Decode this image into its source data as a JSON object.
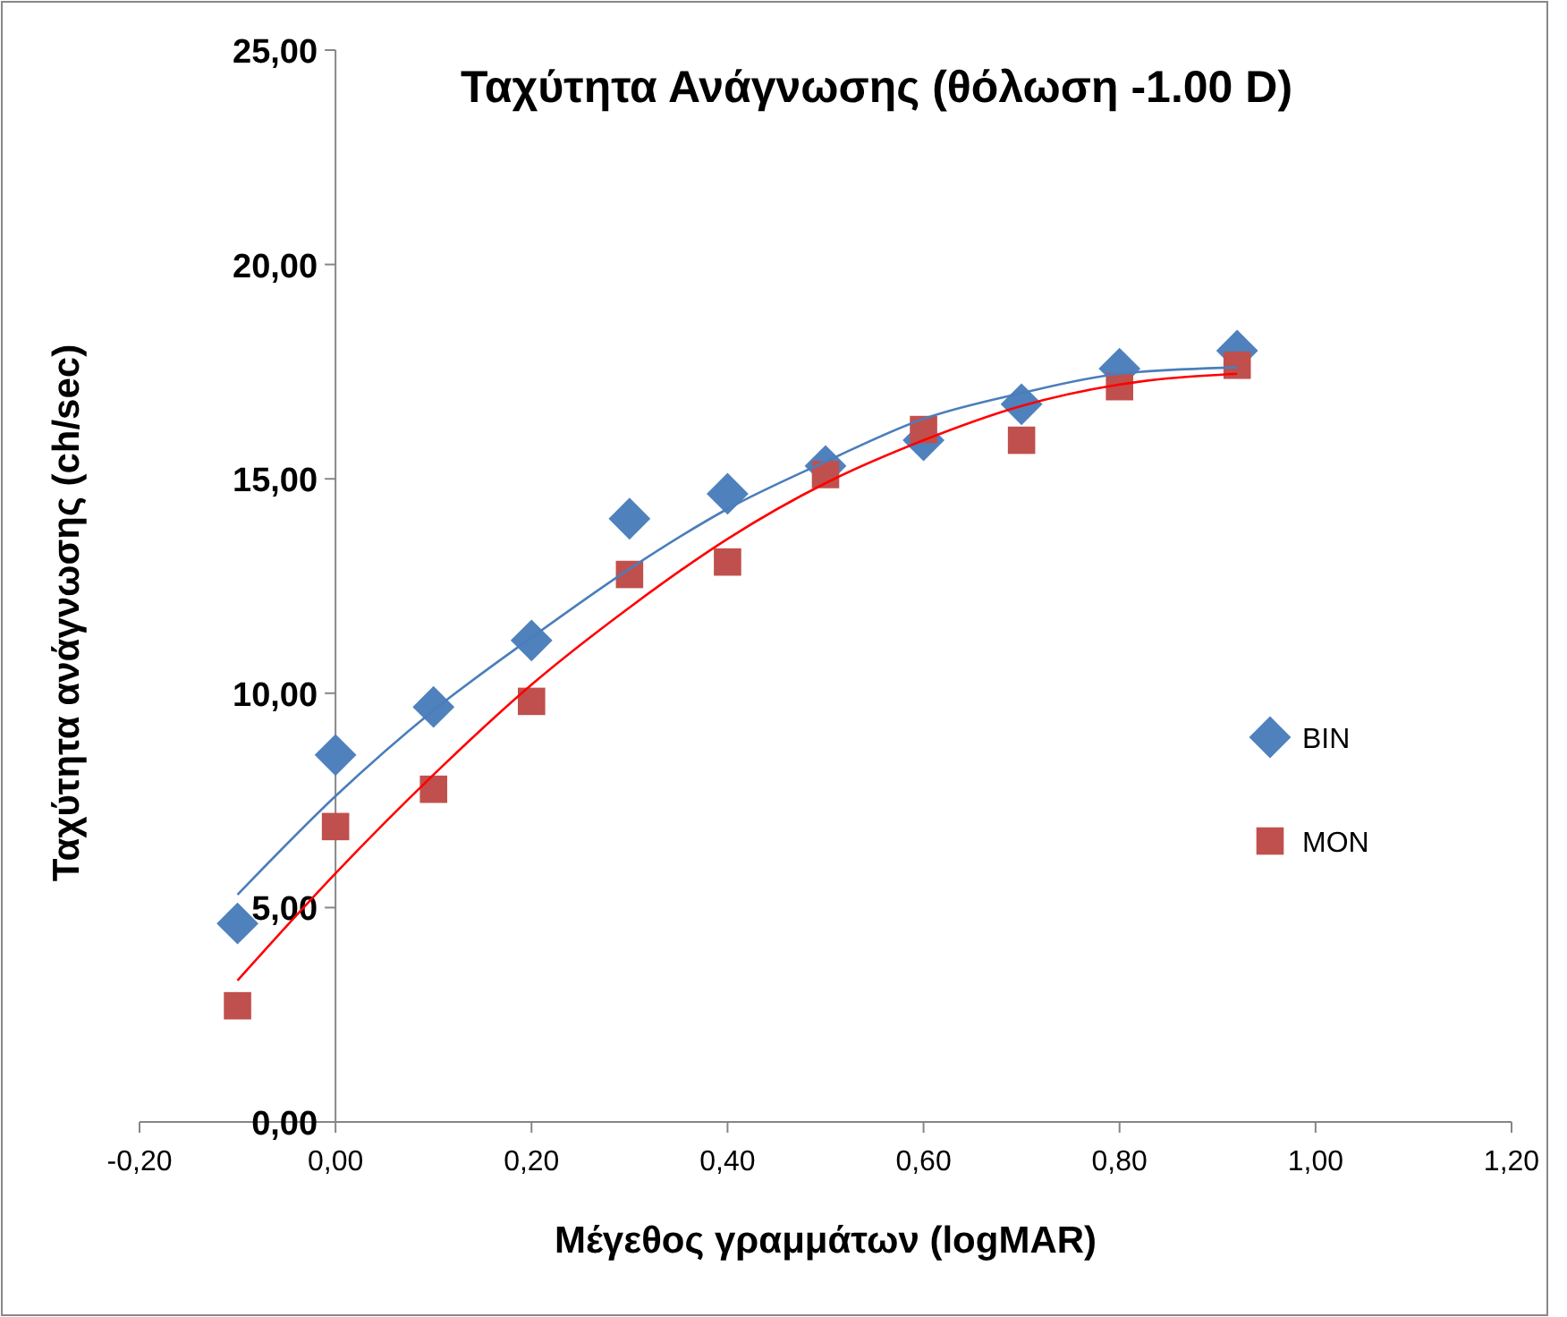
{
  "chart_data": {
    "type": "scatter",
    "title": "Ταχύτητα Ανάγνωσης (θόλωση -1.00 D)",
    "xlabel": "Μέγεθος γραμμάτων (logMAR)",
    "ylabel": "Ταχύτητα ανάγνωσης (ch/sec)",
    "x": [
      -0.1,
      0.0,
      0.1,
      0.2,
      0.3,
      0.4,
      0.5,
      0.6,
      0.7,
      0.8,
      0.92
    ],
    "series": [
      {
        "name": "BIN",
        "marker": "diamond",
        "color": "#4f81bd",
        "values": [
          4.63,
          8.56,
          9.68,
          11.23,
          14.07,
          14.65,
          15.3,
          15.9,
          16.74,
          17.57,
          17.99
        ]
      },
      {
        "name": "MON",
        "marker": "square",
        "color": "#c0504d",
        "values": [
          2.71,
          6.89,
          7.76,
          9.81,
          12.77,
          13.06,
          15.1,
          16.15,
          15.9,
          17.15,
          17.65
        ]
      },
      {
        "type": "line",
        "marker": "none",
        "color": "#4a7ebb",
        "values": [
          5.3,
          7.6,
          9.6,
          11.3,
          12.9,
          14.3,
          15.4,
          16.4,
          17.0,
          17.45,
          17.6
        ]
      },
      {
        "type": "line",
        "marker": "none",
        "color": "#ff0000",
        "values": [
          3.3,
          5.8,
          8.1,
          10.2,
          12.0,
          13.6,
          14.9,
          15.9,
          16.7,
          17.2,
          17.45
        ]
      }
    ],
    "xlim": [
      -0.2,
      1.2
    ],
    "ylim": [
      0,
      25
    ],
    "xticks": [
      {
        "value": -0.2,
        "label": "-0,20"
      },
      {
        "value": 0,
        "label": "0,00"
      },
      {
        "value": 0.2,
        "label": "0,20"
      },
      {
        "value": 0.4,
        "label": "0,40"
      },
      {
        "value": 0.6,
        "label": "0,60"
      },
      {
        "value": 0.8,
        "label": "0,80"
      },
      {
        "value": 1.0,
        "label": "1,00"
      },
      {
        "value": 1.2,
        "label": "1,20"
      }
    ],
    "yticks": [
      {
        "value": 0,
        "label": "0,00"
      },
      {
        "value": 5,
        "label": "5,00"
      },
      {
        "value": 10,
        "label": "10,00"
      },
      {
        "value": 15,
        "label": "15,00"
      },
      {
        "value": 20,
        "label": "20,00"
      },
      {
        "value": 25,
        "label": "25,00"
      }
    ],
    "grid": false,
    "legend": "right"
  }
}
